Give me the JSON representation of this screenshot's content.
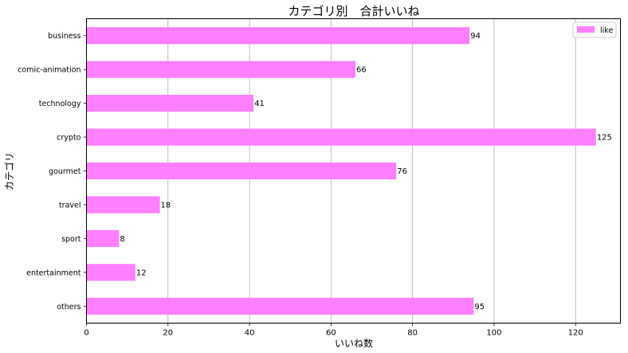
{
  "chart_data": {
    "type": "bar",
    "orientation": "horizontal",
    "title": "カテゴリ別　合計いいね",
    "xlabel": "いいね数",
    "ylabel": "カテゴリ",
    "categories": [
      "business",
      "comic-animation",
      "technology",
      "crypto",
      "gourmet",
      "travel",
      "sport",
      "entertainment",
      "others"
    ],
    "series": [
      {
        "name": "like",
        "values": [
          94,
          66,
          41,
          125,
          76,
          18,
          8,
          12,
          95
        ],
        "color": "#ff80ff"
      }
    ],
    "xlim": [
      0,
      131
    ],
    "xticks": [
      0,
      20,
      40,
      60,
      80,
      100,
      120
    ],
    "grid": "x",
    "legend": "top-right",
    "data_labels": true
  }
}
